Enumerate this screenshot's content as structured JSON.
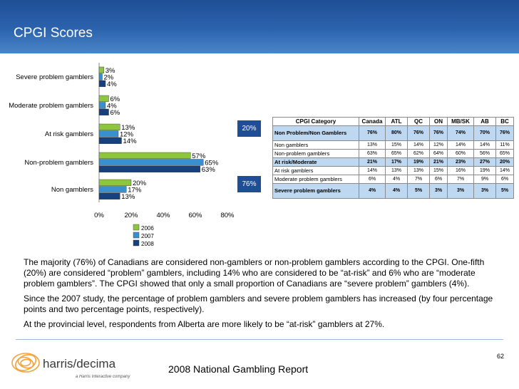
{
  "slide": {
    "title": "CPGI Scores",
    "paragraphs": [
      "The majority (76%) of Canadians are considered non-gamblers or non-problem gamblers according to the CPGI. One-fifth (20%) are considered “problem” gamblers, including 14% who are considered to be “at-risk” and 6% who are “moderate problem gamblers”. The CPGI showed that only a small proportion of Canadians are “severe problem” gamblers (4%).",
      "Since the 2007 study, the percentage of problem gamblers and severe problem gamblers has increased (by four percentage points and two percentage points, respectively).",
      "At the provincial level, respondents from Alberta are more likely to be “at-risk” gamblers at 27%."
    ],
    "footer_title": "2008 National Gambling Report",
    "page_number": "62",
    "logo": {
      "name": "harris/decima",
      "tagline": "a Harris Interactive company"
    }
  },
  "callouts": {
    "problem": "20%",
    "non_problem": "76%"
  },
  "chart_data": {
    "type": "bar",
    "orientation": "horizontal",
    "categories": [
      "Severe problem gamblers",
      "Moderate problem gamblers",
      "At risk gamblers",
      "Non-problem gamblers",
      "Non gamblers"
    ],
    "series": [
      {
        "name": "2006",
        "values": [
          3,
          6,
          13,
          57,
          20
        ],
        "color": "#8dc63f"
      },
      {
        "name": "2007",
        "values": [
          2,
          4,
          12,
          65,
          17
        ],
        "color": "#3a8fd0"
      },
      {
        "name": "2008",
        "values": [
          4,
          6,
          14,
          63,
          13
        ],
        "color": "#17407e"
      }
    ],
    "xlim": [
      0,
      80
    ],
    "xticks": [
      "0%",
      "20%",
      "40%",
      "60%",
      "80%"
    ],
    "value_suffix": "%",
    "legend_position": "bottom"
  },
  "table": {
    "headers": [
      "CPGI Category",
      "Canada",
      "ATL",
      "QC",
      "ON",
      "MB/SK",
      "AB",
      "BC"
    ],
    "rows": [
      {
        "cells": [
          "Non Problem/Non Gamblers",
          "76%",
          "80%",
          "76%",
          "76%",
          "74%",
          "70%",
          "76%"
        ],
        "highlight": true
      },
      {
        "cells": [
          "Non gamblers",
          "13%",
          "15%",
          "14%",
          "12%",
          "14%",
          "14%",
          "11%"
        ],
        "highlight": false
      },
      {
        "cells": [
          "Non-problem gamblers",
          "63%",
          "65%",
          "62%",
          "64%",
          "60%",
          "56%",
          "65%"
        ],
        "highlight": false
      },
      {
        "cells": [
          "At risk/Moderate",
          "21%",
          "17%",
          "19%",
          "21%",
          "23%",
          "27%",
          "20%"
        ],
        "highlight": true
      },
      {
        "cells": [
          "At risk gamblers",
          "14%",
          "13%",
          "13%",
          "15%",
          "16%",
          "19%",
          "14%"
        ],
        "highlight": false
      },
      {
        "cells": [
          "Moderate problem gamblers",
          "6%",
          "4%",
          "7%",
          "6%",
          "7%",
          "9%",
          "6%"
        ],
        "highlight": false
      },
      {
        "cells": [
          "Severe problem gamblers",
          "4%",
          "4%",
          "5%",
          "3%",
          "3%",
          "3%",
          "5%"
        ],
        "highlight": true
      }
    ]
  }
}
